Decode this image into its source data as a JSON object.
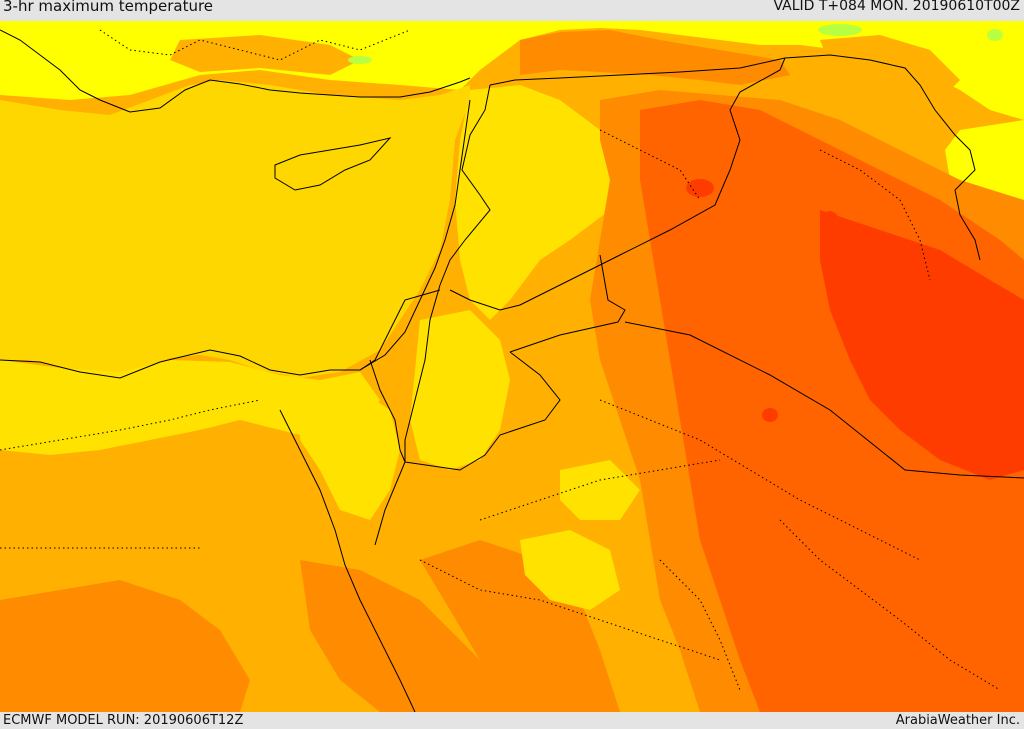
{
  "header": {
    "title": "3-hr maximum temperature",
    "valid": "VALID T+084 MON. 20190610T00Z"
  },
  "footer": {
    "model_run": "ECMWF MODEL RUN: 20190606T12Z",
    "credit": "ArabiaWeather Inc."
  },
  "map": {
    "field": "3-hr maximum temperature",
    "region": "Eastern Mediterranean / Levant / Iraq / northern Arabia",
    "colors": {
      "sea": "#ffd700",
      "cool_yellow": "#ffff00",
      "yellow": "#ffe200",
      "light_orange": "#ffb000",
      "orange": "#ff8c00",
      "dark_orange": "#ff6400",
      "red": "#ff3c00",
      "green_trace": "#b8ff40",
      "border": "#000000"
    }
  }
}
